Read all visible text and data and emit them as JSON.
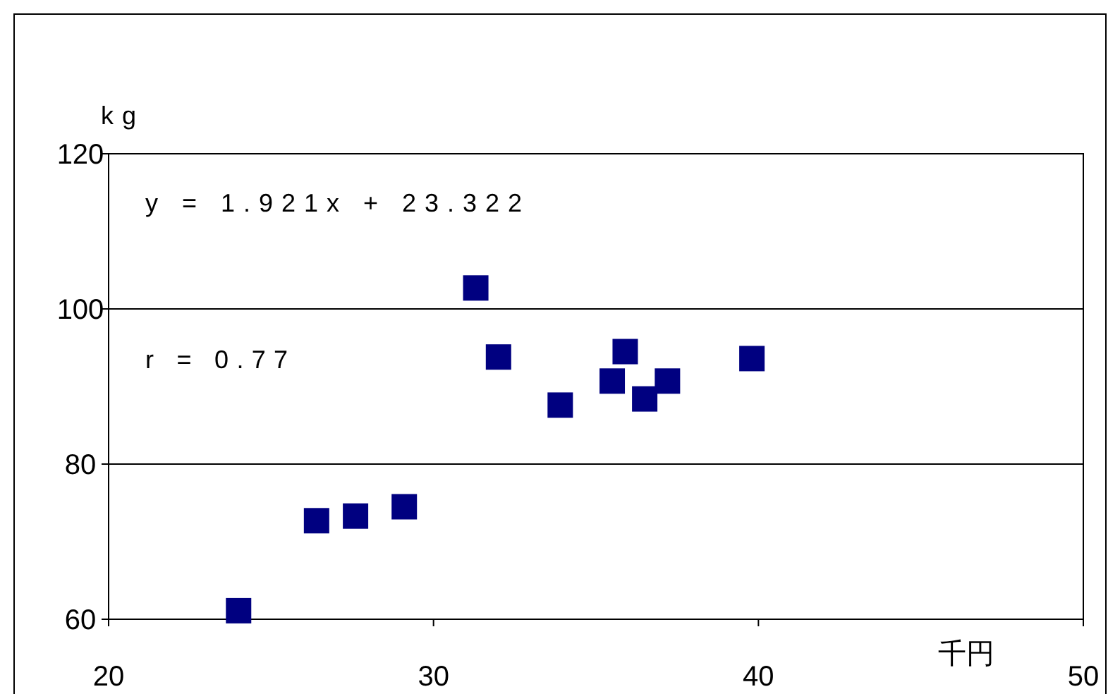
{
  "chart_data": {
    "type": "scatter",
    "xlabel": "千円",
    "ylabel": "kg",
    "annotations": [
      "y = 1.921x + 23.322",
      "r = 0.77"
    ],
    "x": [
      24.0,
      26.4,
      27.6,
      29.1,
      31.3,
      32.0,
      33.9,
      35.5,
      35.9,
      36.5,
      37.2,
      39.8
    ],
    "series": [
      {
        "color": "#000080",
        "values": [
          61.1,
          72.7,
          73.3,
          74.5,
          102.7,
          93.8,
          87.6,
          90.7,
          94.5,
          88.4,
          90.7,
          93.6
        ]
      }
    ],
    "xlim": [
      20,
      50
    ],
    "ylim": [
      60,
      120
    ],
    "xticks": [
      20,
      30,
      40,
      50
    ],
    "yticks": [
      60,
      80,
      100,
      120
    ],
    "grid": "y",
    "marker": "square"
  }
}
